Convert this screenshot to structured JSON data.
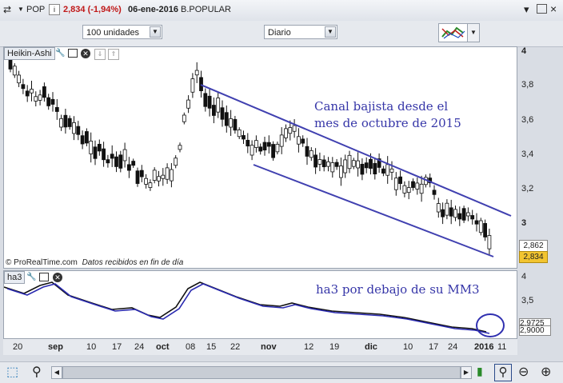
{
  "header": {
    "symbol": "POP",
    "price_change": "2,834 (-1,94%)",
    "date": "06-ene-2016",
    "name": "B.POPULAR",
    "info_glyph": "i"
  },
  "toolbar": {
    "units": "100 unidades",
    "period": "Diario"
  },
  "price_panel": {
    "label": "Heikin-Ashi",
    "copyright": "© ProRealTime.com",
    "data_note": "Datos recibidos en fin de día",
    "annotation_line1": "Canal bajista desde el",
    "annotation_line2": "mes de octubre de 2015",
    "y_ticks": [
      "4",
      "3,8",
      "3,6",
      "3,4",
      "3,2",
      "3"
    ],
    "last_label": "2,862",
    "current_price": "2,834",
    "line_color": "#4040b0"
  },
  "indicator_panel": {
    "label": "ha3",
    "annotation": "ha3 por debajo de su MM3",
    "y_ticks": [
      "4",
      "3,5"
    ],
    "value1": "2,9725",
    "value2": "2,9000"
  },
  "x_axis": {
    "labels": [
      "20",
      "sep",
      "10",
      "17",
      "24",
      "oct",
      "08",
      "15",
      "22",
      "nov",
      "12",
      "19",
      "dic",
      "10",
      "17",
      "24",
      "2016",
      "11"
    ],
    "bold": [
      "sep",
      "oct",
      "nov",
      "dic",
      "2016"
    ]
  },
  "icons": [
    "gear-icon",
    "wrench-icon",
    "window-icon",
    "close-icon",
    "move-down-icon",
    "move-up-icon",
    "zoom-icon",
    "zoom-out-icon",
    "zoom-in-icon"
  ]
}
